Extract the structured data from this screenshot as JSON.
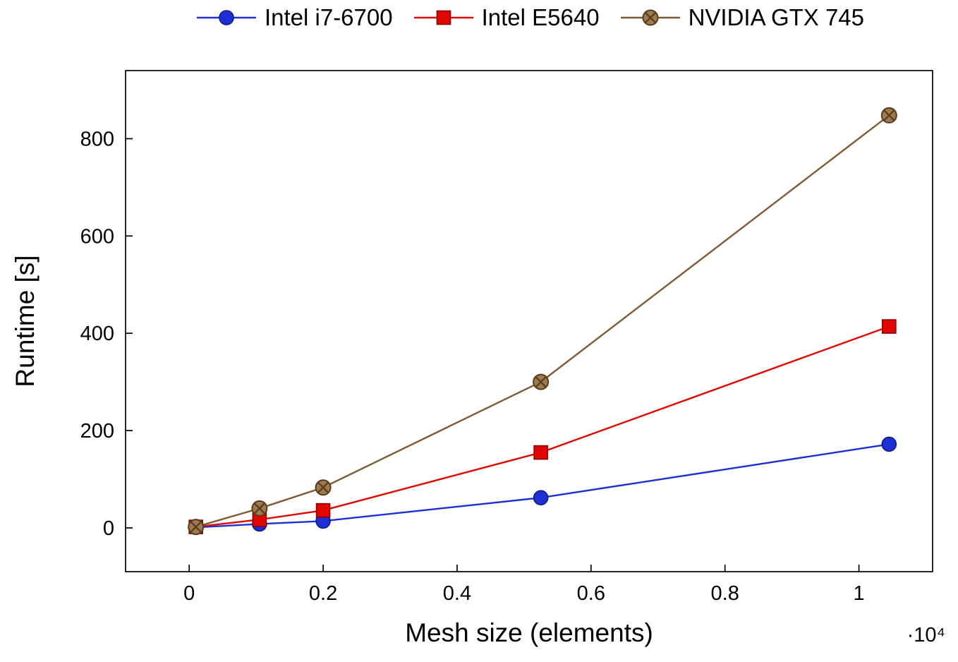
{
  "chart_data": {
    "type": "line",
    "title": "",
    "xlabel": "Mesh size (elements)",
    "ylabel": "Runtime [s]",
    "x_axis_multiplier_label": "·10⁴",
    "legend_position": "top-center",
    "grid": false,
    "x": [
      100,
      1050,
      2000,
      5250,
      10450
    ],
    "series": [
      {
        "name": "Intel i7-6700",
        "marker": "circle",
        "color": "#1f2fd6",
        "marker_fill": "#1f2fd6",
        "marker_stroke": "#101c7a",
        "values": [
          1,
          8,
          14,
          62,
          172
        ]
      },
      {
        "name": "Intel E5640",
        "marker": "square",
        "color": "#e10600",
        "marker_fill": "#e10600",
        "marker_stroke": "#8f0000",
        "values": [
          2,
          17,
          36,
          155,
          414
        ]
      },
      {
        "name": "NVIDIA GTX 745",
        "marker": "crossed-circle",
        "color": "#7e5a34",
        "marker_fill": "#9e7a4e",
        "marker_stroke": "#573b1d",
        "values": [
          2,
          40,
          83,
          300,
          848
        ]
      }
    ],
    "xlim": [
      -950,
      11100
    ],
    "ylim": [
      -90,
      940
    ],
    "xticks": {
      "values": [
        0,
        2000,
        4000,
        6000,
        8000,
        10000
      ],
      "labels": [
        "0",
        "0.2",
        "0.4",
        "0.6",
        "0.8",
        "1"
      ]
    },
    "yticks": {
      "values": [
        0,
        200,
        400,
        600,
        800
      ],
      "labels": [
        "0",
        "200",
        "400",
        "600",
        "800"
      ]
    }
  }
}
